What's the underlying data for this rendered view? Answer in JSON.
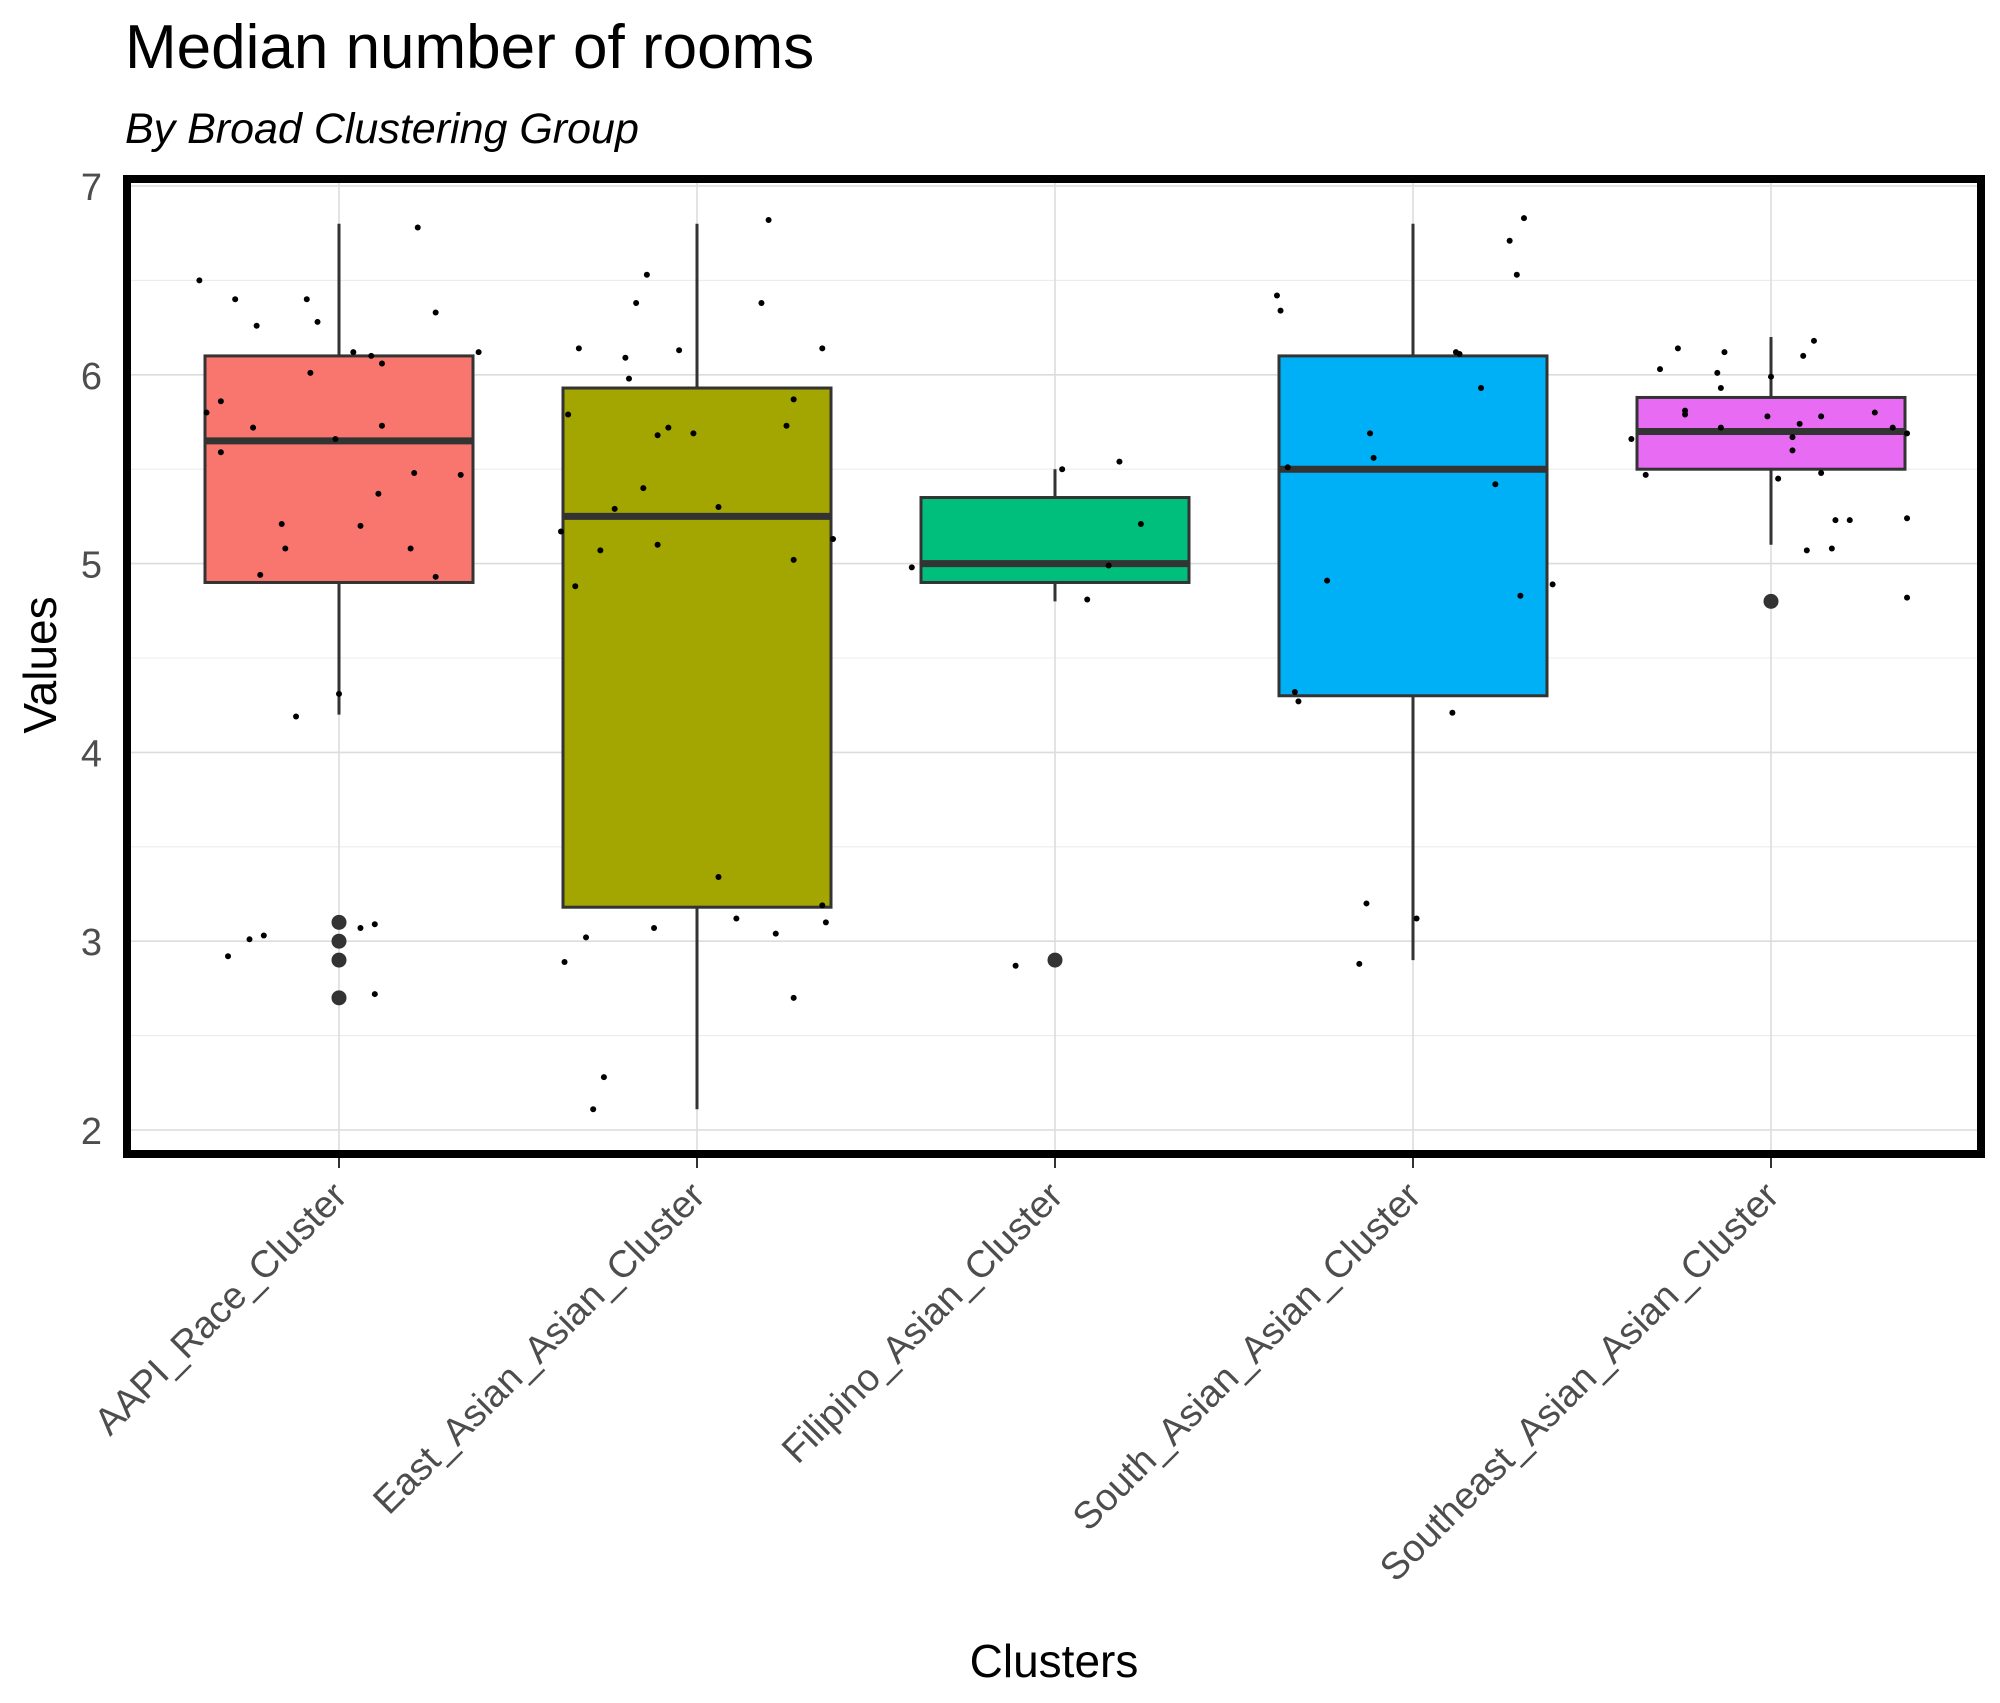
{
  "chart_data": {
    "type": "box",
    "title": "Median number of rooms",
    "subtitle": "By Broad Clustering Group",
    "xlabel": "Clusters",
    "ylabel": "Values",
    "ylim": [
      1.9,
      7.05
    ],
    "yticks": [
      2,
      3,
      4,
      5,
      6,
      7
    ],
    "grid": true,
    "categories": [
      "AAPI_Race_Cluster",
      "East_Asian_Asian_Cluster",
      "Filipino_Asian_Cluster",
      "South_Asian_Asian_Cluster",
      "Southeast_Asian_Asian_Cluster"
    ],
    "boxes": [
      {
        "name": "AAPI_Race_Cluster",
        "color": "#F8766D",
        "q1": 4.9,
        "median": 5.65,
        "q3": 6.1,
        "whisker_low": 4.2,
        "whisker_high": 6.8,
        "outliers": [
          3.1,
          3.0,
          2.9,
          2.7
        ],
        "points": [
          {
            "dx": -0.39,
            "y": 6.5
          },
          {
            "dx": -0.29,
            "y": 6.4
          },
          {
            "dx": -0.23,
            "y": 6.26
          },
          {
            "dx": -0.09,
            "y": 6.4
          },
          {
            "dx": -0.06,
            "y": 6.28
          },
          {
            "dx": 0.22,
            "y": 6.78
          },
          {
            "dx": 0.27,
            "y": 6.33
          },
          {
            "dx": 0.39,
            "y": 6.12
          },
          {
            "dx": 0.04,
            "y": 6.12
          },
          {
            "dx": 0.09,
            "y": 6.1
          },
          {
            "dx": 0.12,
            "y": 6.06
          },
          {
            "dx": -0.08,
            "y": 6.01
          },
          {
            "dx": -0.37,
            "y": 5.8
          },
          {
            "dx": -0.33,
            "y": 5.86
          },
          {
            "dx": -0.24,
            "y": 5.72
          },
          {
            "dx": -0.33,
            "y": 5.59
          },
          {
            "dx": -0.01,
            "y": 5.66
          },
          {
            "dx": 0.12,
            "y": 5.73
          },
          {
            "dx": 0.21,
            "y": 5.48
          },
          {
            "dx": 0.34,
            "y": 5.47
          },
          {
            "dx": 0.11,
            "y": 5.37
          },
          {
            "dx": -0.16,
            "y": 5.21
          },
          {
            "dx": 0.06,
            "y": 5.2
          },
          {
            "dx": -0.15,
            "y": 5.08
          },
          {
            "dx": 0.2,
            "y": 5.08
          },
          {
            "dx": -0.22,
            "y": 4.94
          },
          {
            "dx": 0.27,
            "y": 4.93
          },
          {
            "dx": 0.0,
            "y": 4.31
          },
          {
            "dx": -0.12,
            "y": 4.19
          },
          {
            "dx": -0.31,
            "y": 2.92
          },
          {
            "dx": -0.25,
            "y": 3.01
          },
          {
            "dx": -0.21,
            "y": 3.03
          },
          {
            "dx": 0.06,
            "y": 3.07
          },
          {
            "dx": 0.1,
            "y": 3.09
          },
          {
            "dx": 0.1,
            "y": 2.72
          }
        ]
      },
      {
        "name": "East_Asian_Asian_Cluster",
        "color": "#A3A500",
        "q1": 3.18,
        "median": 5.25,
        "q3": 5.93,
        "whisker_low": 2.11,
        "whisker_high": 6.8,
        "outliers": [],
        "points": [
          {
            "dx": 0.2,
            "y": 6.82
          },
          {
            "dx": -0.14,
            "y": 6.53
          },
          {
            "dx": -0.17,
            "y": 6.38
          },
          {
            "dx": 0.18,
            "y": 6.38
          },
          {
            "dx": -0.33,
            "y": 6.14
          },
          {
            "dx": -0.2,
            "y": 6.09
          },
          {
            "dx": -0.05,
            "y": 6.13
          },
          {
            "dx": 0.35,
            "y": 6.14
          },
          {
            "dx": -0.19,
            "y": 5.98
          },
          {
            "dx": -0.36,
            "y": 5.79
          },
          {
            "dx": 0.27,
            "y": 5.87
          },
          {
            "dx": 0.25,
            "y": 5.73
          },
          {
            "dx": -0.08,
            "y": 5.72
          },
          {
            "dx": -0.11,
            "y": 5.68
          },
          {
            "dx": -0.01,
            "y": 5.69
          },
          {
            "dx": -0.15,
            "y": 5.4
          },
          {
            "dx": -0.23,
            "y": 5.29
          },
          {
            "dx": 0.06,
            "y": 5.3
          },
          {
            "dx": -0.38,
            "y": 5.17
          },
          {
            "dx": 0.38,
            "y": 5.13
          },
          {
            "dx": -0.11,
            "y": 5.1
          },
          {
            "dx": -0.27,
            "y": 5.07
          },
          {
            "dx": 0.27,
            "y": 5.02
          },
          {
            "dx": -0.34,
            "y": 4.88
          },
          {
            "dx": 0.06,
            "y": 3.34
          },
          {
            "dx": 0.35,
            "y": 3.19
          },
          {
            "dx": 0.11,
            "y": 3.12
          },
          {
            "dx": 0.36,
            "y": 3.1
          },
          {
            "dx": -0.12,
            "y": 3.07
          },
          {
            "dx": 0.22,
            "y": 3.04
          },
          {
            "dx": -0.31,
            "y": 3.02
          },
          {
            "dx": -0.37,
            "y": 2.89
          },
          {
            "dx": 0.27,
            "y": 2.7
          },
          {
            "dx": -0.26,
            "y": 2.28
          },
          {
            "dx": -0.29,
            "y": 2.11
          }
        ]
      },
      {
        "name": "Filipino_Asian_Cluster",
        "color": "#00BF7D",
        "q1": 4.9,
        "median": 5.0,
        "q3": 5.35,
        "whisker_low": 4.8,
        "whisker_high": 5.5,
        "outliers": [
          2.9
        ],
        "points": [
          {
            "dx": 0.02,
            "y": 5.5
          },
          {
            "dx": 0.18,
            "y": 5.54
          },
          {
            "dx": 0.24,
            "y": 5.21
          },
          {
            "dx": 0.15,
            "y": 4.99
          },
          {
            "dx": -0.4,
            "y": 4.98
          },
          {
            "dx": 0.09,
            "y": 4.81
          },
          {
            "dx": -0.11,
            "y": 2.87
          }
        ]
      },
      {
        "name": "South_Asian_Asian_Cluster",
        "color": "#00B0F6",
        "q1": 4.3,
        "median": 5.5,
        "q3": 6.1,
        "whisker_low": 2.9,
        "whisker_high": 6.8,
        "outliers": [],
        "points": [
          {
            "dx": 0.31,
            "y": 6.83
          },
          {
            "dx": 0.27,
            "y": 6.71
          },
          {
            "dx": 0.29,
            "y": 6.53
          },
          {
            "dx": -0.38,
            "y": 6.42
          },
          {
            "dx": -0.37,
            "y": 6.34
          },
          {
            "dx": 0.12,
            "y": 6.12
          },
          {
            "dx": 0.13,
            "y": 6.11
          },
          {
            "dx": 0.19,
            "y": 5.93
          },
          {
            "dx": -0.12,
            "y": 5.69
          },
          {
            "dx": -0.11,
            "y": 5.56
          },
          {
            "dx": -0.35,
            "y": 5.51
          },
          {
            "dx": 0.23,
            "y": 5.42
          },
          {
            "dx": -0.24,
            "y": 4.91
          },
          {
            "dx": 0.39,
            "y": 4.89
          },
          {
            "dx": 0.3,
            "y": 4.83
          },
          {
            "dx": -0.32,
            "y": 4.27
          },
          {
            "dx": -0.33,
            "y": 4.32
          },
          {
            "dx": 0.11,
            "y": 4.21
          },
          {
            "dx": -0.13,
            "y": 3.2
          },
          {
            "dx": 0.01,
            "y": 3.12
          },
          {
            "dx": -0.15,
            "y": 2.88
          }
        ]
      },
      {
        "name": "Southeast_Asian_Asian_Cluster",
        "color": "#E76BF3",
        "q1": 5.5,
        "median": 5.7,
        "q3": 5.88,
        "whisker_low": 5.1,
        "whisker_high": 6.2,
        "outliers": [
          4.8
        ],
        "points": [
          {
            "dx": 0.12,
            "y": 6.18
          },
          {
            "dx": -0.26,
            "y": 6.14
          },
          {
            "dx": -0.13,
            "y": 6.12
          },
          {
            "dx": 0.09,
            "y": 6.1
          },
          {
            "dx": -0.31,
            "y": 6.03
          },
          {
            "dx": -0.15,
            "y": 6.01
          },
          {
            "dx": 0.0,
            "y": 5.99
          },
          {
            "dx": -0.14,
            "y": 5.93
          },
          {
            "dx": -0.24,
            "y": 5.81
          },
          {
            "dx": -0.24,
            "y": 5.79
          },
          {
            "dx": 0.29,
            "y": 5.8
          },
          {
            "dx": -0.01,
            "y": 5.78
          },
          {
            "dx": 0.14,
            "y": 5.78
          },
          {
            "dx": 0.08,
            "y": 5.74
          },
          {
            "dx": -0.14,
            "y": 5.72
          },
          {
            "dx": 0.34,
            "y": 5.72
          },
          {
            "dx": -0.39,
            "y": 5.66
          },
          {
            "dx": 0.06,
            "y": 5.67
          },
          {
            "dx": 0.38,
            "y": 5.69
          },
          {
            "dx": 0.06,
            "y": 5.6
          },
          {
            "dx": -0.35,
            "y": 5.47
          },
          {
            "dx": 0.14,
            "y": 5.48
          },
          {
            "dx": 0.02,
            "y": 5.45
          },
          {
            "dx": 0.22,
            "y": 5.23
          },
          {
            "dx": 0.18,
            "y": 5.23
          },
          {
            "dx": 0.38,
            "y": 5.24
          },
          {
            "dx": 0.1,
            "y": 5.07
          },
          {
            "dx": 0.17,
            "y": 5.08
          },
          {
            "dx": 0.38,
            "y": 4.82
          }
        ]
      }
    ]
  }
}
